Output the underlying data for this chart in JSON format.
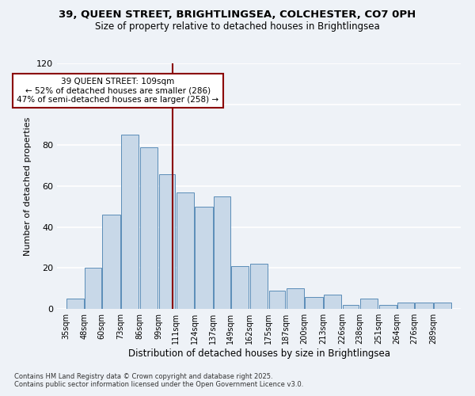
{
  "title1": "39, QUEEN STREET, BRIGHTLINGSEA, COLCHESTER, CO7 0PH",
  "title2": "Size of property relative to detached houses in Brightlingsea",
  "xlabel": "Distribution of detached houses by size in Brightlingsea",
  "ylabel": "Number of detached properties",
  "bar_labels": [
    "35sqm",
    "48sqm",
    "60sqm",
    "73sqm",
    "86sqm",
    "99sqm",
    "111sqm",
    "124sqm",
    "137sqm",
    "149sqm",
    "162sqm",
    "175sqm",
    "187sqm",
    "200sqm",
    "213sqm",
    "226sqm",
    "238sqm",
    "251sqm",
    "264sqm",
    "276sqm",
    "289sqm"
  ],
  "bar_values": [
    5,
    20,
    46,
    85,
    79,
    66,
    57,
    50,
    55,
    21,
    22,
    9,
    10,
    6,
    7,
    2,
    5,
    2,
    3,
    3,
    3
  ],
  "bar_color": "#c8d8e8",
  "bar_edge_color": "#5b8db8",
  "vline_color": "#8b0000",
  "annotation_text": "39 QUEEN STREET: 109sqm\n← 52% of detached houses are smaller (286)\n47% of semi-detached houses are larger (258) →",
  "annotation_box_color": "white",
  "annotation_box_edge": "#8b0000",
  "footnote": "Contains HM Land Registry data © Crown copyright and database right 2025.\nContains public sector information licensed under the Open Government Licence v3.0.",
  "bg_color": "#eef2f7",
  "ylim": [
    0,
    120
  ],
  "bin_edges": [
    35,
    48,
    60,
    73,
    86,
    99,
    111,
    124,
    137,
    149,
    162,
    175,
    187,
    200,
    213,
    226,
    238,
    251,
    264,
    276,
    289,
    302
  ],
  "vline_x_data": 109
}
